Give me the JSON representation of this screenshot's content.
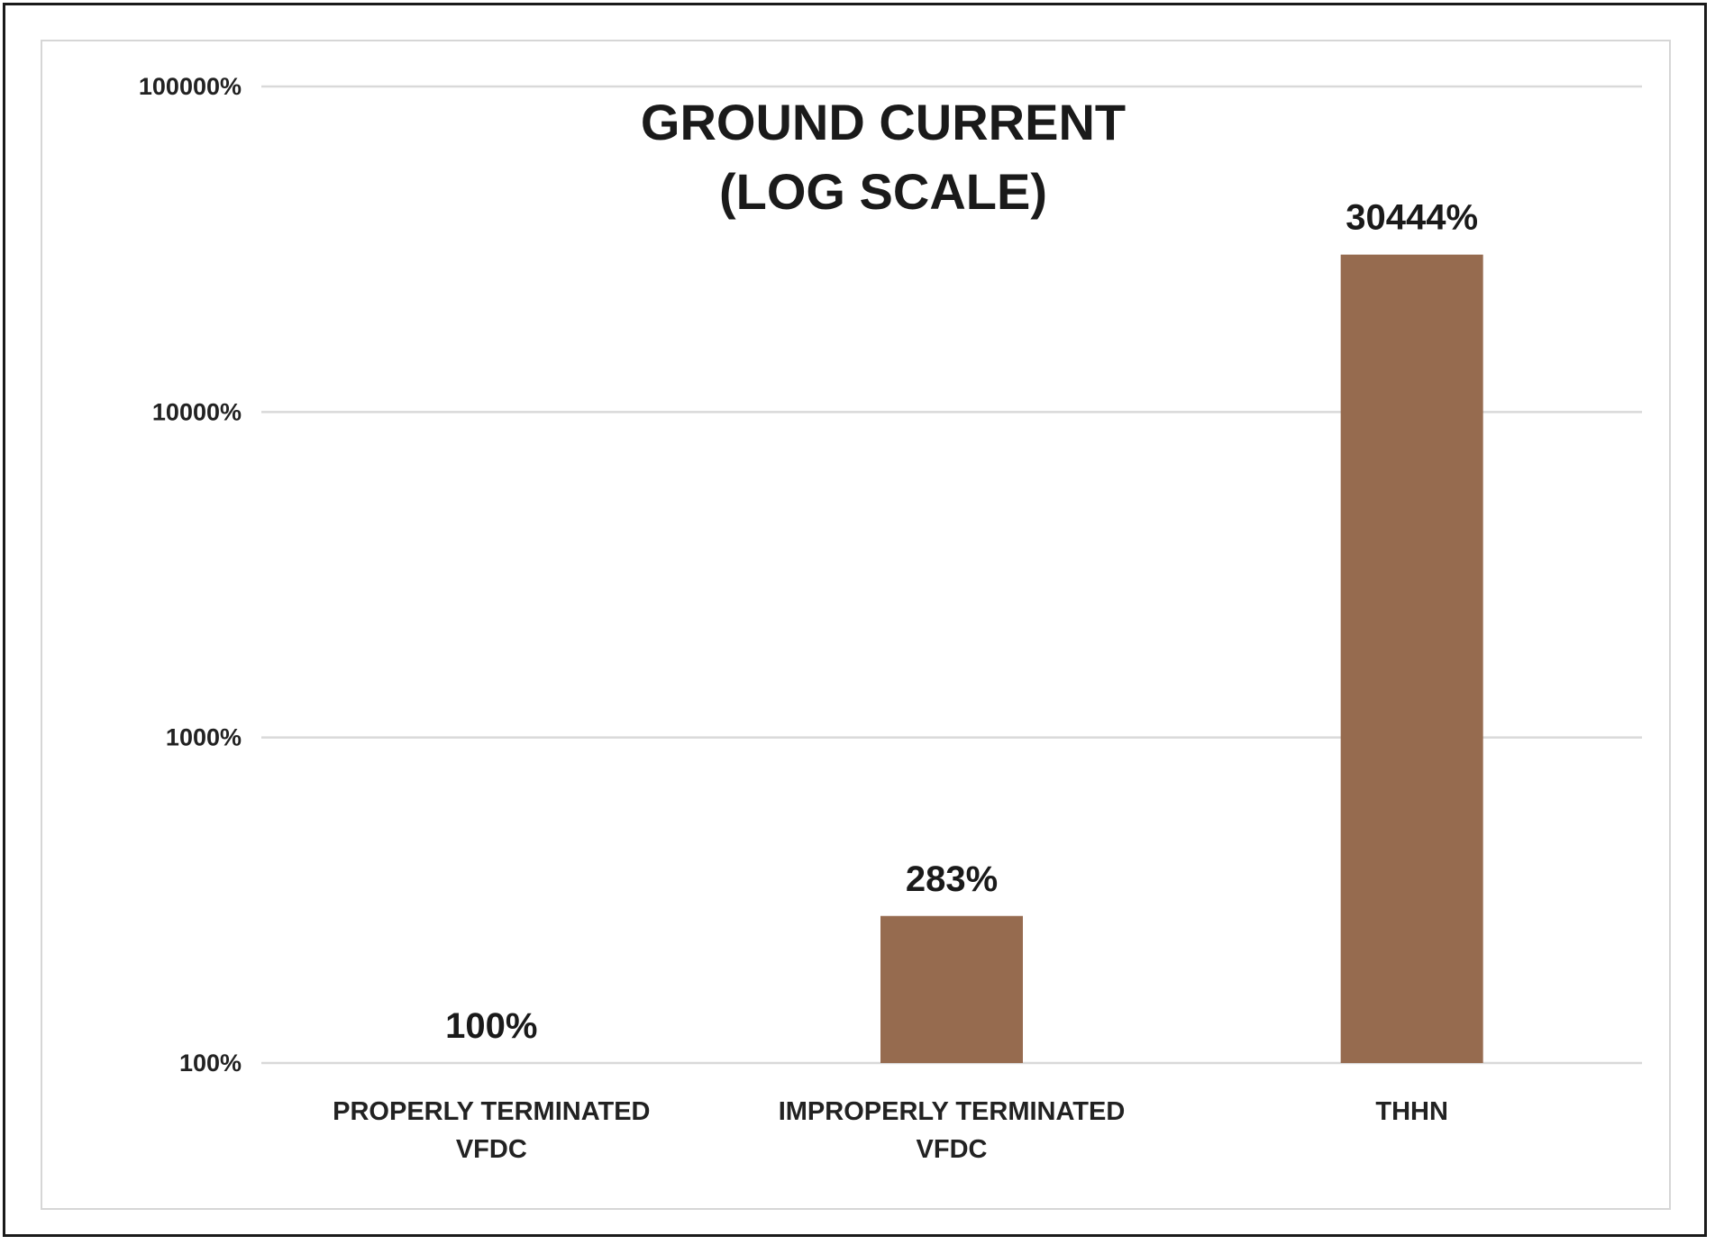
{
  "chart_data": {
    "type": "bar",
    "title": "GROUND CURRENT",
    "subtitle": "(LOG SCALE)",
    "xlabel": "",
    "ylabel": "",
    "y_scale": "log",
    "ylim": [
      100,
      100000
    ],
    "y_ticks": [
      100,
      1000,
      10000,
      100000
    ],
    "y_tick_labels": [
      "100%",
      "1000%",
      "10000%",
      "100000%"
    ],
    "categories": [
      [
        "PROPERLY TERMINATED",
        "VFDC"
      ],
      [
        "IMPROPERLY TERMINATED",
        "VFDC"
      ],
      [
        "THHN"
      ]
    ],
    "values": [
      100,
      283,
      30444
    ],
    "data_labels": [
      "100%",
      "283%",
      "30444%"
    ],
    "grid": true,
    "legend": "none",
    "colors": {
      "bar": "#966b4f",
      "grid": "#d9d9d9",
      "text": "#1a1a1a"
    }
  }
}
